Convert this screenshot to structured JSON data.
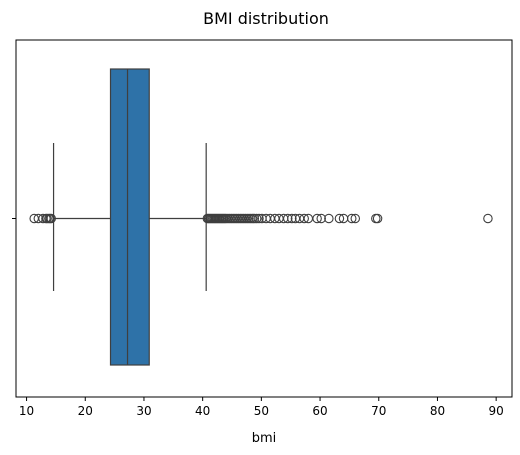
{
  "chart_data": {
    "type": "box",
    "title": "BMI distribution",
    "xlabel": "bmi",
    "ylabel": "",
    "orientation": "horizontal",
    "xlim": [
      8.2,
      92.7
    ],
    "x_ticks": [
      10,
      20,
      30,
      40,
      50,
      60,
      70,
      80,
      90
    ],
    "y_ticks": [
      ""
    ],
    "grid": false,
    "color": "#2e72a8",
    "box": {
      "whisker_low": 14.6,
      "q1": 24.3,
      "median": 27.2,
      "q3": 30.9,
      "whisker_high": 40.6
    },
    "outliers": [
      11.3,
      12.0,
      12.8,
      13.3,
      13.5,
      13.8,
      14.0,
      14.2,
      40.8,
      41.0,
      41.2,
      41.4,
      41.6,
      41.8,
      42.0,
      42.2,
      42.4,
      42.6,
      42.8,
      43.0,
      43.2,
      43.4,
      43.6,
      43.8,
      44.0,
      44.3,
      44.6,
      44.9,
      45.2,
      45.5,
      45.8,
      46.1,
      46.4,
      46.7,
      47.0,
      47.3,
      47.6,
      47.9,
      48.2,
      48.5,
      48.8,
      49.2,
      49.6,
      50.1,
      50.8,
      51.5,
      52.3,
      53.0,
      53.8,
      54.5,
      55.2,
      55.8,
      56.5,
      57.3,
      58.0,
      59.5,
      60.2,
      61.5,
      63.3,
      64.0,
      65.4,
      66.0,
      69.5,
      69.8,
      88.6
    ]
  }
}
